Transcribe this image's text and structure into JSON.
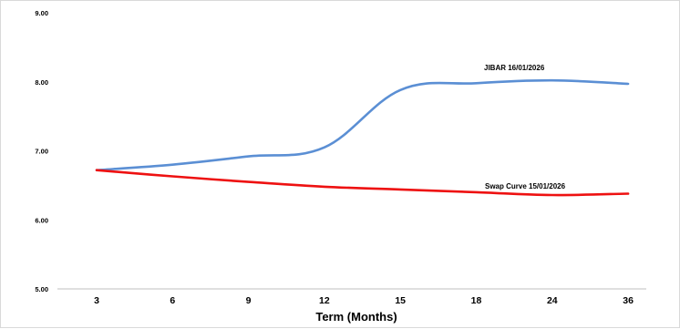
{
  "chart_data": {
    "type": "line",
    "title": "",
    "xlabel": "Term (Months)",
    "ylabel": "",
    "categories": [
      "3",
      "6",
      "9",
      "12",
      "15",
      "18",
      "24",
      "36"
    ],
    "ylim": [
      5.0,
      9.0
    ],
    "yticks": [
      "5.00",
      "6.00",
      "7.00",
      "8.00",
      "9.00"
    ],
    "grid": false,
    "legend": "inline labels",
    "series": [
      {
        "name": "JIBAR 16/01/2026",
        "color": "#5b8fd4",
        "values": [
          6.72,
          6.8,
          6.92,
          7.05,
          7.88,
          7.98,
          8.02,
          7.97
        ]
      },
      {
        "name": "Swap Curve  15/01/2026",
        "color": "#ee1111",
        "values": [
          6.72,
          6.63,
          6.55,
          6.48,
          6.44,
          6.4,
          6.36,
          6.38
        ]
      }
    ]
  }
}
